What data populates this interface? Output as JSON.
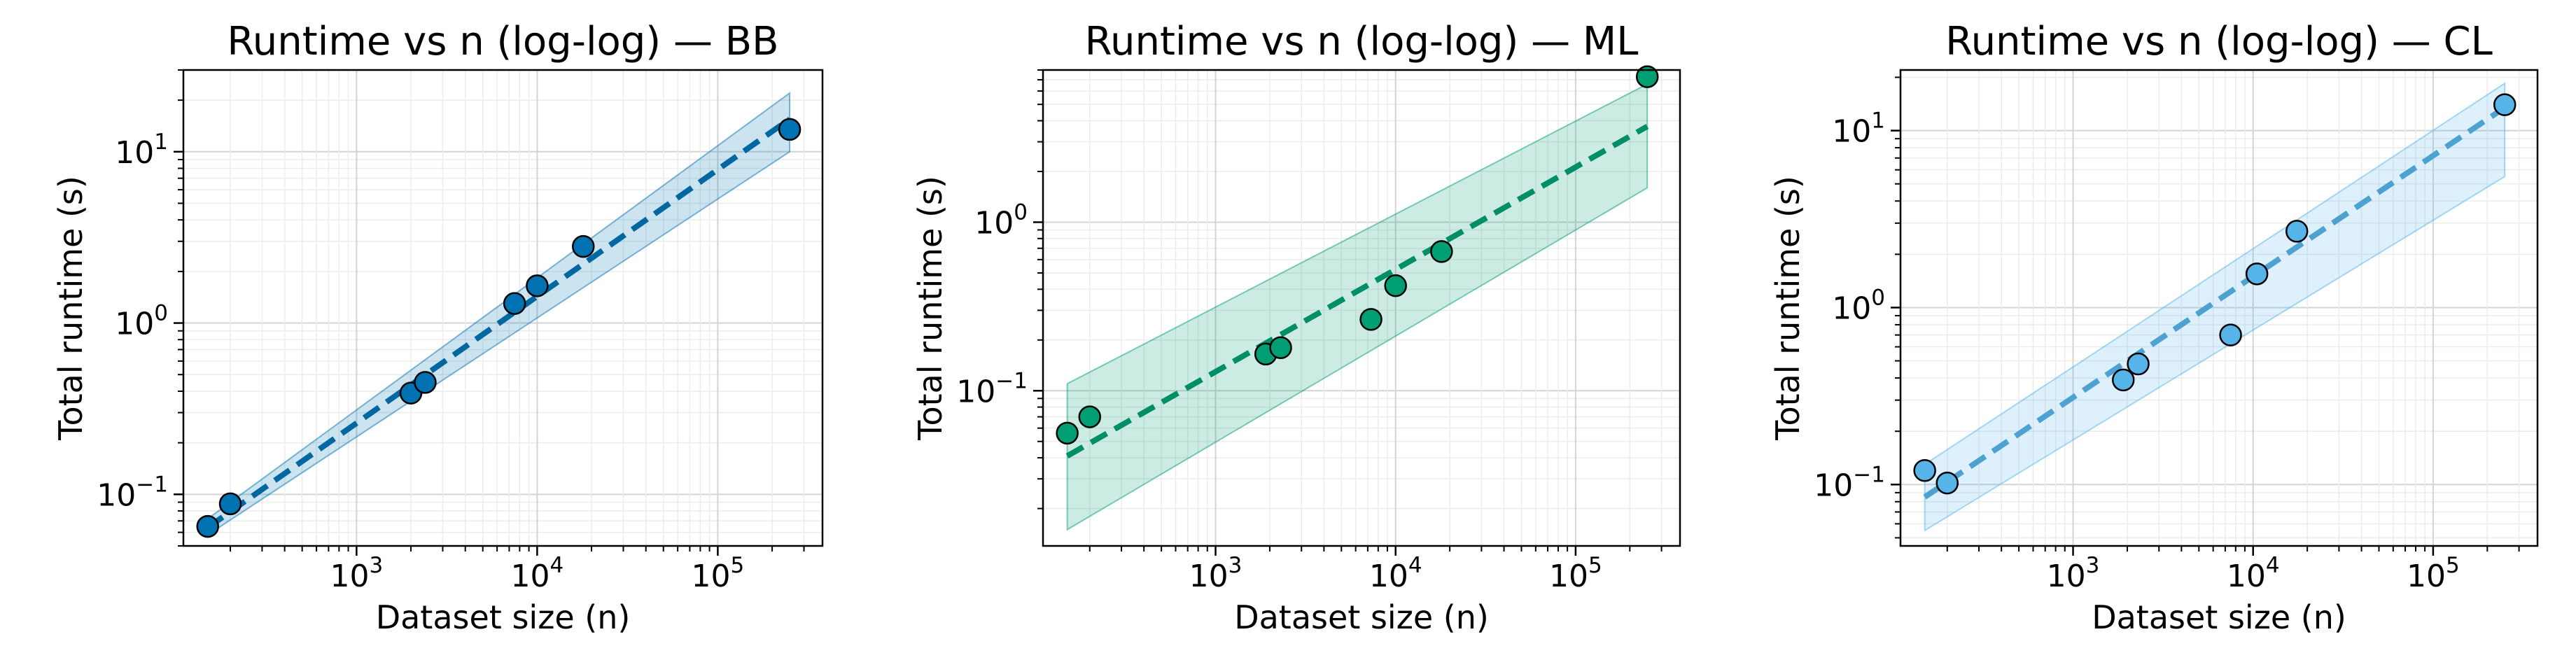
{
  "chart_data": [
    {
      "type": "scatter",
      "title": "Runtime vs n (log-log) — BB",
      "xlabel": "Dataset size (n)",
      "ylabel": "Total runtime (s)",
      "xscale": "log",
      "yscale": "log",
      "xlim": [
        110,
        380000
      ],
      "ylim": [
        0.05,
        30
      ],
      "xticks": [
        1000,
        10000,
        100000
      ],
      "xtick_labels": [
        {
          "base": "10",
          "exp": "3"
        },
        {
          "base": "10",
          "exp": "4"
        },
        {
          "base": "10",
          "exp": "5"
        }
      ],
      "yticks": [
        0.1,
        1,
        10
      ],
      "ytick_labels": [
        {
          "base": "10",
          "exp": "−1"
        },
        {
          "base": "10",
          "exp": "0"
        },
        {
          "base": "10",
          "exp": "1"
        }
      ],
      "grid": true,
      "color": "#0072B2",
      "points": {
        "x": [
          150,
          200,
          2000,
          2400,
          7500,
          10000,
          18000,
          250000
        ],
        "y": [
          0.065,
          0.088,
          0.39,
          0.45,
          1.3,
          1.65,
          2.8,
          13.5
        ]
      },
      "fit": {
        "x": [
          150,
          250000
        ],
        "y": [
          0.064,
          15.5
        ]
      },
      "band": {
        "x": [
          150,
          250000
        ],
        "lower": [
          0.058,
          10.0
        ],
        "upper": [
          0.072,
          22.0
        ]
      }
    },
    {
      "type": "scatter",
      "title": "Runtime vs n (log-log) — ML",
      "xlabel": "Dataset size (n)",
      "ylabel": "Total runtime (s)",
      "xscale": "log",
      "yscale": "log",
      "xlim": [
        110,
        380000
      ],
      "ylim": [
        0.012,
        8.0
      ],
      "xticks": [
        1000,
        10000,
        100000
      ],
      "xtick_labels": [
        {
          "base": "10",
          "exp": "3"
        },
        {
          "base": "10",
          "exp": "4"
        },
        {
          "base": "10",
          "exp": "5"
        }
      ],
      "yticks": [
        0.1,
        1
      ],
      "ytick_labels": [
        {
          "base": "10",
          "exp": "−1"
        },
        {
          "base": "10",
          "exp": "0"
        }
      ],
      "grid": true,
      "color": "#009E73",
      "points": {
        "x": [
          150,
          200,
          1900,
          2300,
          7300,
          10000,
          18000,
          250000
        ],
        "y": [
          0.056,
          0.07,
          0.165,
          0.18,
          0.265,
          0.42,
          0.67,
          7.3
        ]
      },
      "fit": {
        "x": [
          150,
          250000
        ],
        "y": [
          0.041,
          3.7
        ]
      },
      "band": {
        "x": [
          150,
          250000
        ],
        "lower": [
          0.015,
          1.6
        ],
        "upper": [
          0.11,
          6.6
        ]
      }
    },
    {
      "type": "scatter",
      "title": "Runtime vs n (log-log) — CL",
      "xlabel": "Dataset size (n)",
      "ylabel": "Total runtime (s)",
      "xscale": "log",
      "yscale": "log",
      "xlim": [
        110,
        380000
      ],
      "ylim": [
        0.045,
        22
      ],
      "xticks": [
        1000,
        10000,
        100000
      ],
      "xtick_labels": [
        {
          "base": "10",
          "exp": "3"
        },
        {
          "base": "10",
          "exp": "4"
        },
        {
          "base": "10",
          "exp": "5"
        }
      ],
      "yticks": [
        0.1,
        1,
        10
      ],
      "ytick_labels": [
        {
          "base": "10",
          "exp": "−1"
        },
        {
          "base": "10",
          "exp": "0"
        },
        {
          "base": "10",
          "exp": "1"
        }
      ],
      "grid": true,
      "color": "#56B4E9",
      "points": {
        "x": [
          150,
          200,
          1900,
          2300,
          7500,
          10500,
          17500,
          250000
        ],
        "y": [
          0.12,
          0.102,
          0.39,
          0.48,
          0.7,
          1.55,
          2.7,
          14.0
        ]
      },
      "fit": {
        "x": [
          150,
          250000
        ],
        "y": [
          0.085,
          13.5
        ]
      },
      "band": {
        "x": [
          150,
          250000
        ],
        "lower": [
          0.055,
          5.5
        ],
        "upper": [
          0.13,
          18.5
        ]
      }
    }
  ]
}
